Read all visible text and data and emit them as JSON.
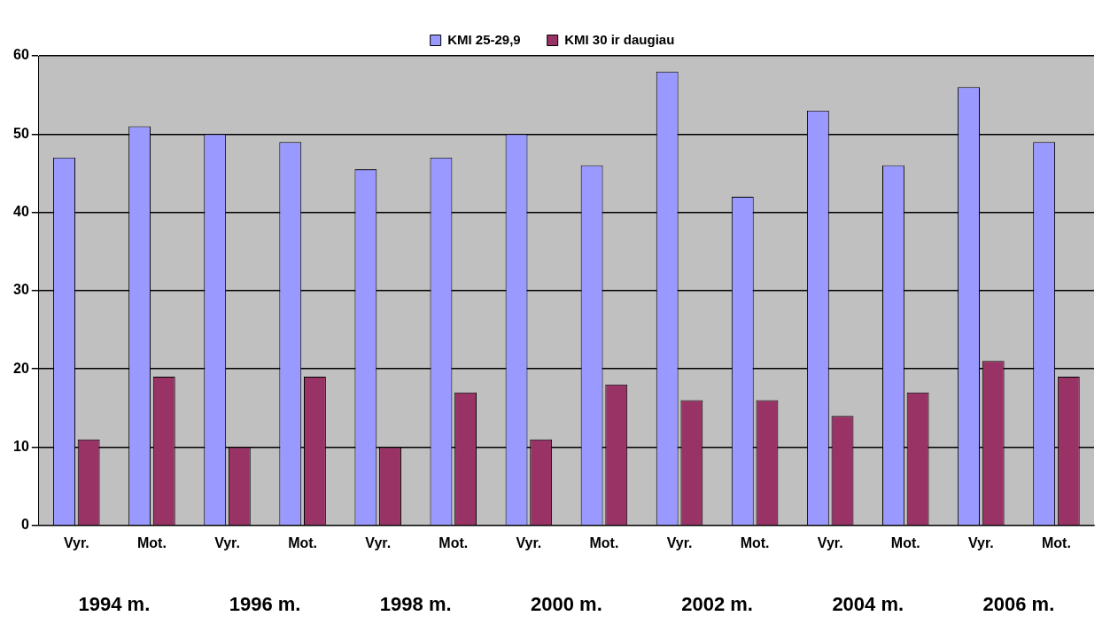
{
  "chart_data": {
    "type": "bar",
    "categories": [
      "Vyr.",
      "Mot.",
      "Vyr.",
      "Mot.",
      "Vyr.",
      "Mot.",
      "Vyr.",
      "Mot.",
      "Vyr.",
      "Mot.",
      "Vyr.",
      "Mot.",
      "Vyr.",
      "Mot."
    ],
    "series": [
      {
        "name": "KMI 25-29,9",
        "color": "#9999ff",
        "values": [
          47,
          51,
          50,
          49,
          45.5,
          47,
          50,
          46,
          58,
          42,
          53,
          46,
          56,
          49
        ]
      },
      {
        "name": "KMI 30 ir daugiau",
        "color": "#993366",
        "values": [
          11,
          19,
          10,
          19,
          10,
          17,
          11,
          18,
          16,
          16,
          14,
          17,
          21,
          19
        ]
      }
    ],
    "ylim": [
      0,
      60
    ],
    "yticks": [
      0,
      10,
      20,
      30,
      40,
      50,
      60
    ],
    "grid": "y",
    "legend": "top",
    "annotations": [
      "1994 m.",
      "1996 m.",
      "1998 m.",
      "2000 m.",
      "2002 m.",
      "2004 m.",
      "2006 m."
    ]
  }
}
